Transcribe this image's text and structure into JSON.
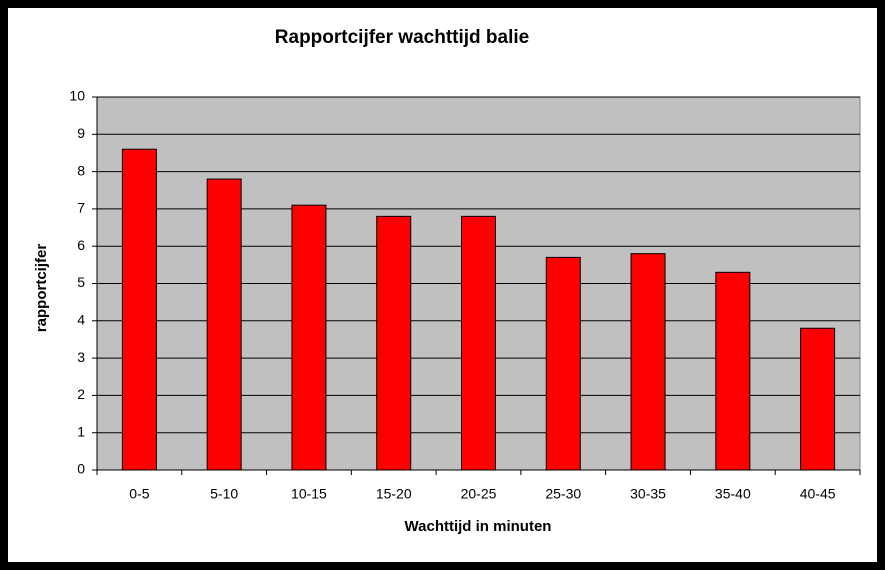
{
  "chart_data": {
    "type": "bar",
    "title": "Rapportcijfer wachttijd balie",
    "x_label": "Wachttijd in minuten",
    "y_label": "rapportcijfer",
    "categories": [
      "0-5",
      "5-10",
      "10-15",
      "15-20",
      "20-25",
      "25-30",
      "30-35",
      "35-40",
      "40-45"
    ],
    "values": [
      8.6,
      7.8,
      7.1,
      6.8,
      6.8,
      5.7,
      5.8,
      5.3,
      3.8
    ],
    "color": "#ff0000",
    "ylim": [
      0,
      10
    ],
    "yticks": [
      0,
      1,
      2,
      3,
      4,
      5,
      6,
      7,
      8,
      9,
      10
    ],
    "grid": true
  }
}
